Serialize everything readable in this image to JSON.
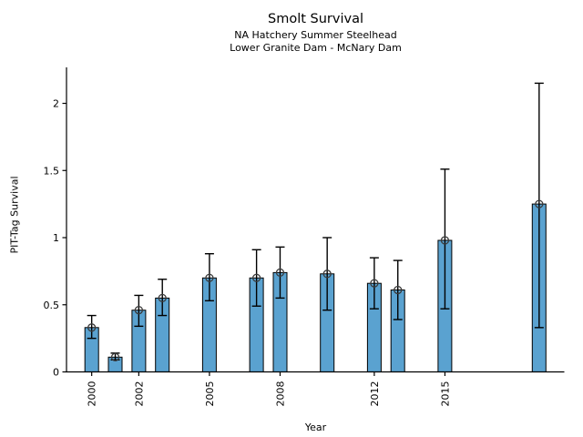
{
  "chart_data": {
    "type": "bar",
    "title": "Smolt Survival",
    "subtitle1": "NA Hatchery Summer Steelhead",
    "subtitle2": "Lower Granite Dam - McNary Dam",
    "xlabel": "Year",
    "ylabel": "PIT-Tag Survival",
    "x": [
      2000,
      2001,
      2002,
      2003,
      2005,
      2007,
      2008,
      2010,
      2012,
      2013,
      2015,
      2019
    ],
    "values": [
      0.33,
      0.11,
      0.46,
      0.55,
      0.7,
      0.7,
      0.74,
      0.73,
      0.66,
      0.61,
      0.98,
      1.25
    ],
    "err_low": [
      0.25,
      0.09,
      0.34,
      0.42,
      0.53,
      0.49,
      0.55,
      0.46,
      0.47,
      0.39,
      0.47,
      0.33
    ],
    "err_high": [
      0.42,
      0.14,
      0.57,
      0.69,
      0.88,
      0.91,
      0.93,
      1.0,
      0.85,
      0.83,
      1.51,
      2.15
    ],
    "xticks": [
      "2000",
      "2002",
      "2005",
      "2008",
      "2012",
      "2015"
    ],
    "xtick_values": [
      2000,
      2002,
      2005,
      2008,
      2012,
      2015
    ],
    "yticks": [
      "0",
      "0.5",
      "1",
      "1.5",
      "2"
    ],
    "ytick_values": [
      0,
      0.5,
      1,
      1.5,
      2
    ],
    "xlim": [
      1998.93,
      2020.07
    ],
    "ylim": [
      0,
      2.268
    ],
    "legend": "none",
    "grid": "off",
    "bar_color": "#5AA2D0",
    "bar_edge_color": "#000000",
    "error_color": "#000000",
    "marker": "open-circle",
    "marker_color": "#3a3a3a"
  }
}
